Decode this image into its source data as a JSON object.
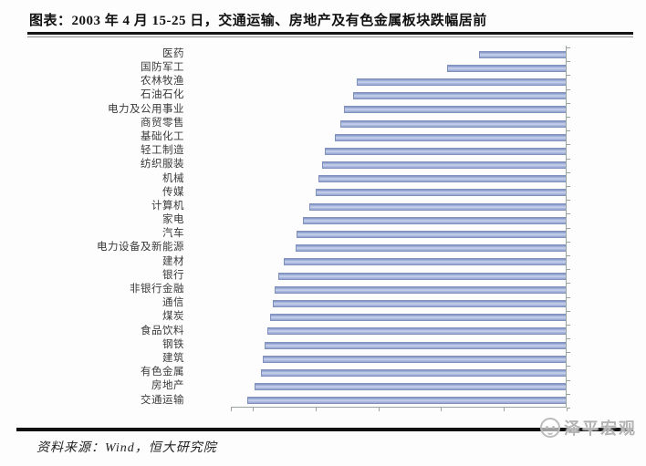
{
  "header": {
    "title": "图表：2003 年 4 月 15-25 日，交通运输、房地产及有色金属板块跌幅居前"
  },
  "footer": {
    "source": "资料来源：Wind，恒大研究院",
    "watermark": "泽平宏观"
  },
  "chart_data": {
    "type": "bar",
    "orientation": "horizontal",
    "title": "图表：2003 年 4 月 15-25 日，交通运输、房地产及有色金属板块跌幅居前",
    "categories": [
      "医药",
      "国防军工",
      "农林牧渔",
      "石油石化",
      "电力及公用事业",
      "商贸零售",
      "基础化工",
      "轻工制造",
      "纺织服装",
      "机械",
      "传媒",
      "计算机",
      "家电",
      "汽车",
      "电力设备及新能源",
      "建材",
      "银行",
      "非银行金融",
      "通信",
      "煤炭",
      "食品饮料",
      "钢铁",
      "建筑",
      "有色金属",
      "房地产",
      "交通运输"
    ],
    "values": [
      -1.4,
      -1.9,
      -3.35,
      -3.4,
      -3.55,
      -3.6,
      -3.7,
      -3.85,
      -3.9,
      -3.95,
      -4.0,
      -4.1,
      -4.2,
      -4.3,
      -4.32,
      -4.5,
      -4.6,
      -4.65,
      -4.68,
      -4.72,
      -4.77,
      -4.81,
      -4.84,
      -4.87,
      -4.97,
      -5.09
    ],
    "unit": "%",
    "xlabel": "",
    "ylabel": "",
    "xlim": [
      -5.35,
      0
    ],
    "x_tick_step": 1,
    "x_tick_labels_visible": false,
    "zero_axis_position": "right",
    "grid": "off",
    "legend_position": "none",
    "bar_color": "#93a7d6",
    "bar_border_color": "#8191bd",
    "axis_color": "#9aa49e"
  }
}
